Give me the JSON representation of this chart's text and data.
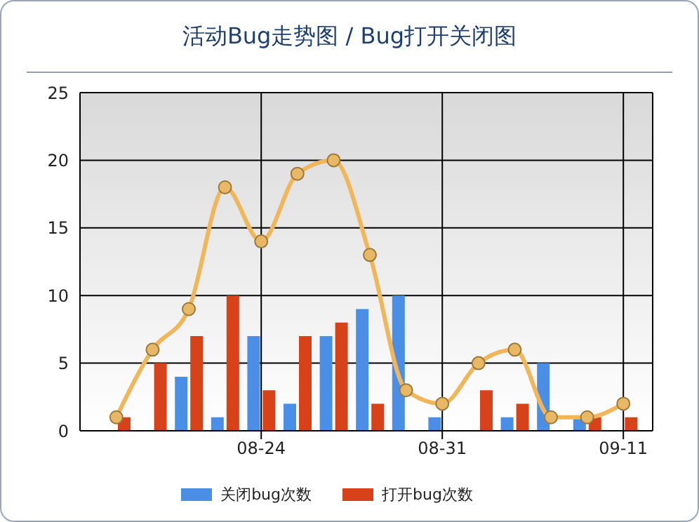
{
  "chart_data": {
    "type": "bar",
    "title": "活动Bug走势图 / Bug打开关闭图",
    "categories": [
      null,
      null,
      null,
      null,
      "08-24",
      null,
      null,
      null,
      null,
      "08-31",
      null,
      null,
      null,
      null,
      "09-11"
    ],
    "series": [
      {
        "name": "关闭bug次数",
        "color": "#4a8ee6",
        "values": [
          0,
          0,
          4,
          1,
          7,
          2,
          7,
          9,
          10,
          1,
          0,
          1,
          5,
          1,
          0
        ]
      },
      {
        "name": "打开bug次数",
        "color": "#d8421a",
        "values": [
          1,
          5,
          7,
          10,
          3,
          7,
          8,
          2,
          0,
          0,
          3,
          2,
          0,
          1,
          1
        ]
      },
      {
        "type": "line",
        "color": "#f2b65a",
        "values": [
          1,
          6,
          9,
          18,
          14,
          19,
          20,
          13,
          3,
          2,
          5,
          6,
          1,
          1,
          2
        ],
        "marker": "circle"
      }
    ],
    "ylim": [
      0,
      25
    ],
    "yticks": [
      0,
      5,
      10,
      15,
      20,
      25
    ],
    "grid": true,
    "legend": "bottom"
  }
}
